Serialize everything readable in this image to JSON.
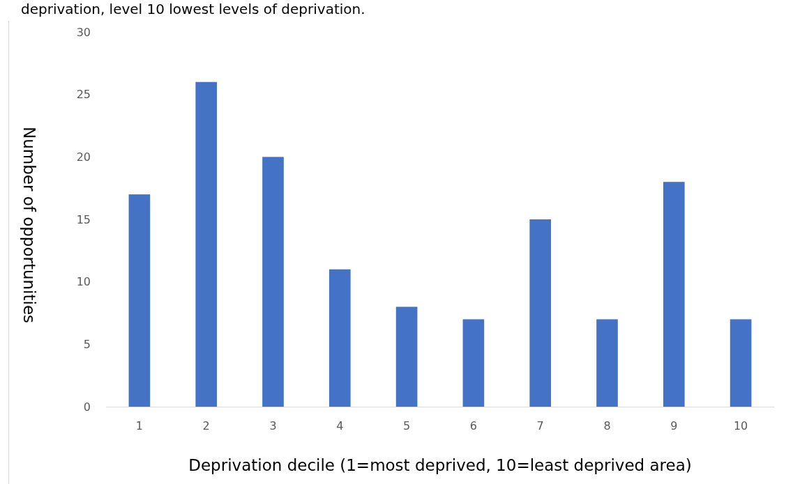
{
  "chart_data": {
    "type": "bar",
    "title": "deprivation, level 10 lowest levels of deprivation.",
    "xlabel": "Deprivation decile (1=most deprived, 10=least deprived area)",
    "ylabel": "Number of opportunities",
    "categories": [
      "1",
      "2",
      "3",
      "4",
      "5",
      "6",
      "7",
      "8",
      "9",
      "10"
    ],
    "values": [
      17,
      26,
      20,
      11,
      8,
      7,
      15,
      7,
      18,
      7
    ],
    "color": "#4472c4",
    "ylim": [
      0,
      30
    ],
    "yticks": [
      0,
      5,
      10,
      15,
      20,
      25,
      30
    ],
    "grid": false
  }
}
